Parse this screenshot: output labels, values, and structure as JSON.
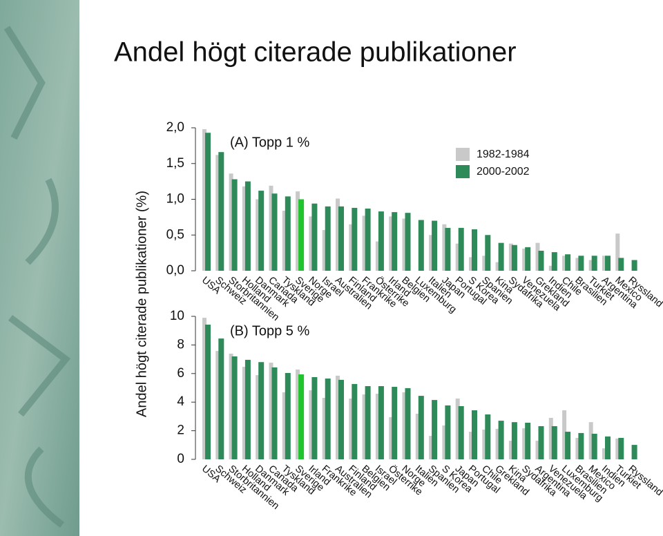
{
  "title": "Andel högt citerade publikationer",
  "y_label": "Andel högt citerade publikationer (%)",
  "chart_data": [
    {
      "type": "bar",
      "title": "(A) Topp 1 %",
      "categories": [
        "USA",
        "Schweiz",
        "Storbritannien",
        "Holland",
        "Danmark",
        "Canada",
        "Tyskland",
        "Sverige",
        "Norge",
        "Israel",
        "Australien",
        "Finland",
        "Frankrike",
        "Österrike",
        "Irland",
        "Belgien",
        "Luxemburg",
        "Italien",
        "Japan",
        "Portugal",
        "S Korea",
        "Spanien",
        "Kina",
        "Sydafrika",
        "Venezuela",
        "Grekland",
        "Indien",
        "Chile",
        "Brasilien",
        "Turkiet",
        "Argentina",
        "Mexico",
        "Ryssland"
      ],
      "series": [
        {
          "name": "1982-1984",
          "color": "#c9c9c9",
          "values": [
            1.98,
            1.62,
            1.36,
            1.18,
            1.0,
            1.19,
            0.84,
            1.11,
            0.76,
            0.57,
            1.01,
            0.65,
            0.77,
            0.41,
            0.76,
            0.73,
            null,
            0.5,
            0.65,
            0.38,
            0.19,
            0.21,
            0.12,
            0.38,
            0.31,
            0.39,
            0.07,
            0.21,
            0.18,
            0.15,
            0.21,
            0.52,
            null
          ]
        },
        {
          "name": "2000-2002",
          "color": "#2e8a58",
          "values": [
            1.93,
            1.66,
            1.28,
            1.25,
            1.12,
            1.08,
            1.04,
            1.0,
            0.94,
            0.9,
            0.9,
            0.88,
            0.87,
            0.83,
            0.82,
            0.81,
            0.71,
            0.7,
            0.6,
            0.6,
            0.58,
            0.5,
            0.39,
            0.36,
            0.33,
            0.28,
            0.26,
            0.23,
            0.21,
            0.21,
            0.21,
            0.18,
            0.15
          ]
        }
      ],
      "highlight": {
        "category_index": 7,
        "color": "#1fc42e"
      },
      "ylim": [
        0,
        2
      ],
      "yticks": [
        {
          "value": 0,
          "label": "0,0"
        },
        {
          "value": 0.5,
          "label": "0,5"
        },
        {
          "value": 1,
          "label": "1,0"
        },
        {
          "value": 1.5,
          "label": "1,5"
        },
        {
          "value": 2,
          "label": "2,0"
        }
      ],
      "legend": "upper right"
    },
    {
      "type": "bar",
      "title": "(B) Topp 5 %",
      "categories": [
        "USA",
        "Schweiz",
        "Storbritannien",
        "Holland",
        "Danmark",
        "Canada",
        "Tyskland",
        "Sverige",
        "Irland",
        "Frankrike",
        "Australien",
        "Finland",
        "Belgien",
        "Israel",
        "Österrike",
        "Norge",
        "Italien",
        "Spanien",
        "S Korea",
        "Japan",
        "Portugal",
        "Chile",
        "Grekland",
        "Kina",
        "Sydafrika",
        "Argentina",
        "Venezuela",
        "Luxemburg",
        "Brasilien",
        "Mexico",
        "Indien",
        "Turkiet",
        "Ryssland"
      ],
      "series": [
        {
          "color": "#c9c9c9",
          "values": [
            9.9,
            7.58,
            7.39,
            6.47,
            5.89,
            6.76,
            4.69,
            6.28,
            4.83,
            4.3,
            5.85,
            4.25,
            4.54,
            4.59,
            2.95,
            4.69,
            3.19,
            1.64,
            2.37,
            4.25,
            1.93,
            2.08,
            2.13,
            1.3,
            2.17,
            1.3,
            2.9,
            3.43,
            1.5,
            2.6,
            0.77,
            1.45,
            null
          ]
        },
        {
          "color": "#2e8a58",
          "values": [
            9.42,
            8.45,
            7.2,
            6.96,
            6.8,
            6.43,
            6.04,
            5.94,
            5.75,
            5.65,
            5.56,
            5.27,
            5.12,
            5.12,
            5.07,
            4.98,
            4.44,
            4.15,
            3.77,
            3.72,
            3.43,
            3.14,
            2.7,
            2.6,
            2.56,
            2.32,
            2.32,
            1.93,
            1.84,
            1.79,
            1.6,
            1.5,
            1.01
          ]
        }
      ],
      "highlight": {
        "category_index": 7,
        "color": "#1fc42e"
      },
      "ylim": [
        0,
        10
      ],
      "yticks": [
        0,
        2,
        4,
        6,
        8,
        10
      ]
    }
  ]
}
